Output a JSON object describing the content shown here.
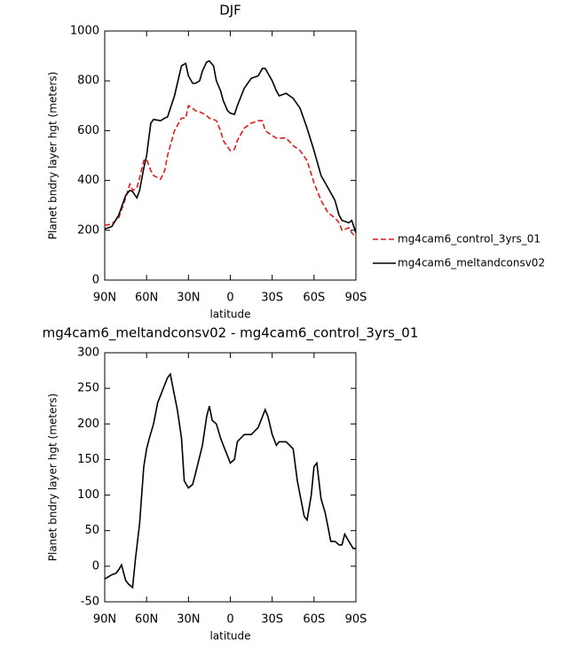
{
  "chart_data": [
    {
      "type": "line",
      "title": "DJF",
      "xlabel": "latitude",
      "ylabel": "Planet bndry layer hgt (meters)",
      "x": [
        90,
        85,
        80,
        75,
        72,
        70,
        67,
        65,
        62,
        60,
        57,
        55,
        50,
        47,
        45,
        40,
        35,
        32,
        30,
        27,
        25,
        22,
        20,
        17,
        15,
        12,
        10,
        7,
        5,
        2,
        0,
        -3,
        -5,
        -10,
        -15,
        -20,
        -23,
        -25,
        -30,
        -33,
        -35,
        -40,
        -45,
        -50,
        -55,
        -60,
        -65,
        -70,
        -75,
        -78,
        -80,
        -85,
        -87,
        -90
      ],
      "series": [
        {
          "name": "mg4cam6_control_3yrs_01",
          "color": "#e41a1c",
          "dash": true,
          "values": [
            220,
            225,
            250,
            330,
            385,
            360,
            370,
            410,
            480,
            485,
            440,
            420,
            405,
            440,
            500,
            600,
            650,
            650,
            700,
            690,
            680,
            675,
            670,
            660,
            650,
            645,
            640,
            600,
            560,
            535,
            520,
            525,
            560,
            610,
            630,
            640,
            640,
            600,
            580,
            570,
            570,
            570,
            540,
            520,
            480,
            390,
            320,
            270,
            250,
            230,
            200,
            210,
            190,
            170
          ]
        },
        {
          "name": "mg4cam6_meltandconsv02",
          "color": "#000000",
          "dash": false,
          "values": [
            205,
            215,
            260,
            340,
            360,
            355,
            330,
            360,
            450,
            500,
            630,
            645,
            640,
            650,
            655,
            740,
            860,
            870,
            820,
            790,
            790,
            800,
            840,
            875,
            880,
            860,
            800,
            760,
            720,
            680,
            670,
            665,
            700,
            770,
            810,
            820,
            850,
            850,
            800,
            760,
            740,
            750,
            730,
            690,
            610,
            520,
            420,
            370,
            320,
            260,
            240,
            230,
            240,
            190
          ]
        }
      ],
      "xlim": [
        90,
        -90
      ],
      "xticks": [
        {
          "value": 90,
          "label": "90N"
        },
        {
          "value": 60,
          "label": "60N"
        },
        {
          "value": 30,
          "label": "30N"
        },
        0,
        {
          "value": -30,
          "label": "30S"
        },
        {
          "value": -60,
          "label": "60S"
        },
        {
          "value": -90,
          "label": "90S"
        }
      ],
      "ylim": [
        0,
        1000
      ],
      "yticks": [
        0,
        200,
        400,
        600,
        800,
        1000
      ],
      "legend": "right"
    },
    {
      "type": "line",
      "title": "mg4cam6_meltandconsv02 - mg4cam6_control_3yrs_01",
      "xlabel": "latitude",
      "ylabel": "Planet bndry layer hgt (meters)",
      "x": [
        90,
        85,
        82,
        80,
        78,
        75,
        73,
        70,
        68,
        65,
        62,
        60,
        58,
        55,
        52,
        50,
        47,
        45,
        43,
        40,
        38,
        35,
        33,
        30,
        27,
        25,
        20,
        17,
        15,
        13,
        10,
        7,
        5,
        2,
        0,
        -3,
        -5,
        -10,
        -15,
        -20,
        -25,
        -27,
        -30,
        -33,
        -35,
        -40,
        -45,
        -48,
        -50,
        -53,
        -55,
        -58,
        -60,
        -62,
        -65,
        -68,
        -70,
        -72,
        -75,
        -78,
        -80,
        -82,
        -85,
        -88,
        -90
      ],
      "series": [
        {
          "color": "#000000",
          "dash": false,
          "values": [
            -18,
            -12,
            -10,
            -5,
            2,
            -20,
            -25,
            -30,
            10,
            60,
            140,
            165,
            180,
            200,
            230,
            240,
            255,
            265,
            270,
            240,
            220,
            180,
            120,
            110,
            115,
            130,
            170,
            210,
            225,
            205,
            200,
            180,
            170,
            155,
            145,
            150,
            175,
            185,
            185,
            195,
            220,
            210,
            185,
            170,
            175,
            175,
            165,
            120,
            100,
            70,
            65,
            100,
            140,
            145,
            95,
            75,
            55,
            35,
            35,
            30,
            30,
            45,
            35,
            25,
            25
          ]
        }
      ],
      "xlim": [
        90,
        -90
      ],
      "xticks": [
        {
          "value": 90,
          "label": "90N"
        },
        {
          "value": 60,
          "label": "60N"
        },
        {
          "value": 30,
          "label": "30N"
        },
        0,
        {
          "value": -30,
          "label": "30S"
        },
        {
          "value": -60,
          "label": "60S"
        },
        {
          "value": -90,
          "label": "90S"
        }
      ],
      "ylim": [
        -50,
        300
      ],
      "yticks": [
        -50,
        0,
        50,
        100,
        150,
        200,
        250,
        300
      ]
    }
  ]
}
